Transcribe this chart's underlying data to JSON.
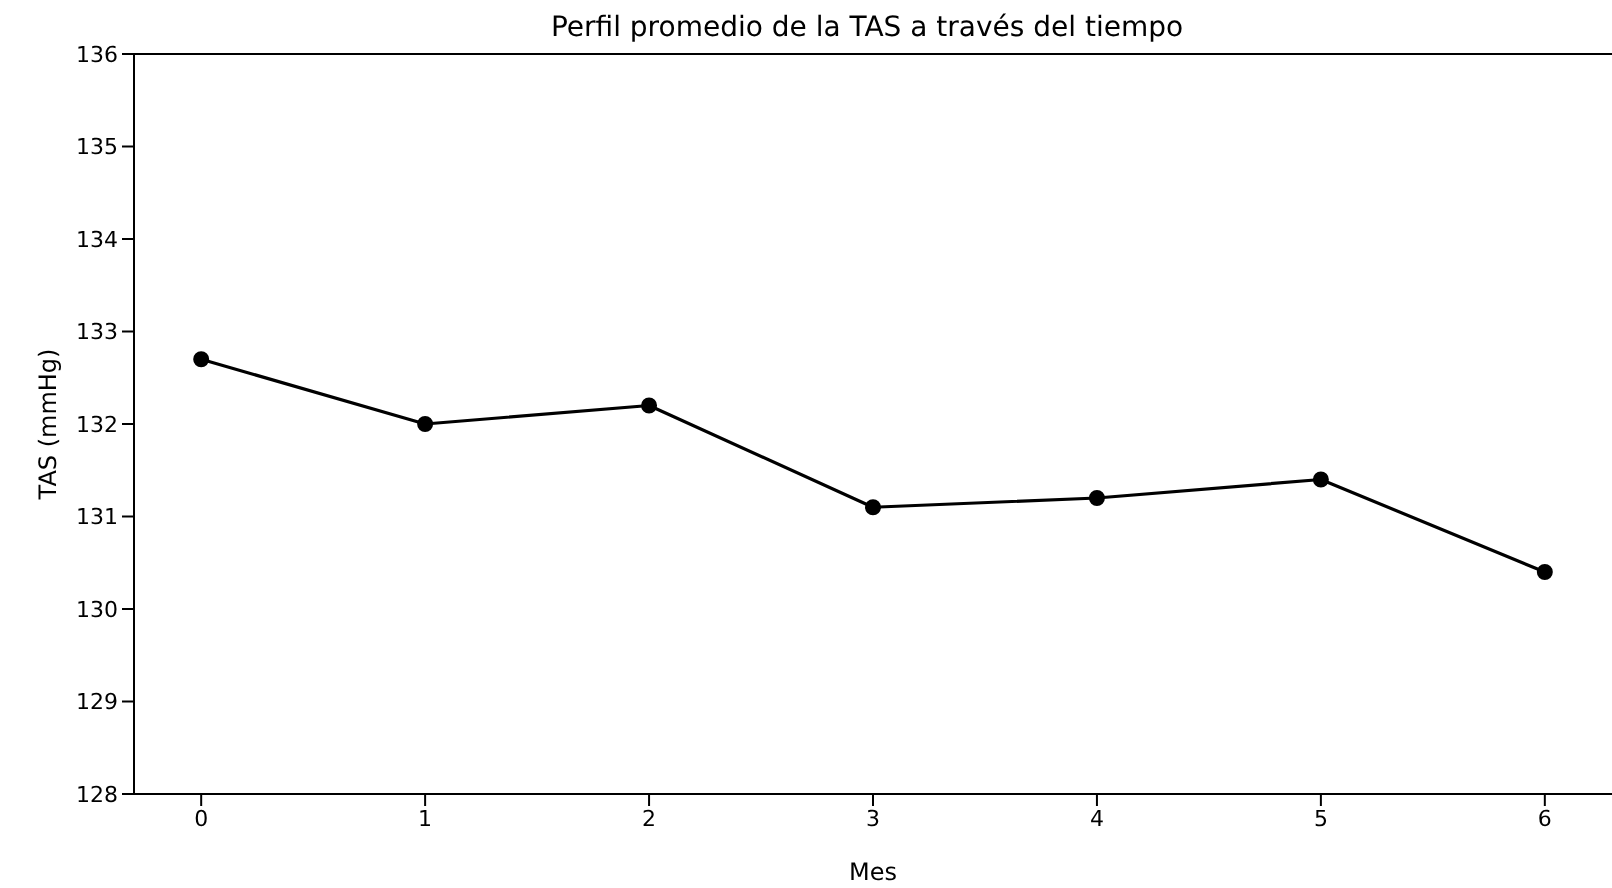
{
  "chart_data": {
    "type": "line",
    "title": "Perfil promedio de la TAS a través del tiempo",
    "xlabel": "Mes",
    "ylabel": "TAS (mmHg)",
    "x": [
      0,
      1,
      2,
      3,
      4,
      5,
      6
    ],
    "series": [
      {
        "color": "#000000",
        "values": [
          132.7,
          132.0,
          132.2,
          131.1,
          131.2,
          131.4,
          130.4
        ]
      }
    ],
    "xlim": [
      -0.3,
      6.3
    ],
    "xticks": [
      0,
      1,
      2,
      3,
      4,
      5,
      6
    ],
    "ylim": [
      128,
      136
    ],
    "yticks": [
      128,
      129,
      130,
      131,
      132,
      133,
      134,
      135,
      136
    ],
    "marker": "circle",
    "line_style": "solid",
    "grid": false,
    "legend": false
  }
}
